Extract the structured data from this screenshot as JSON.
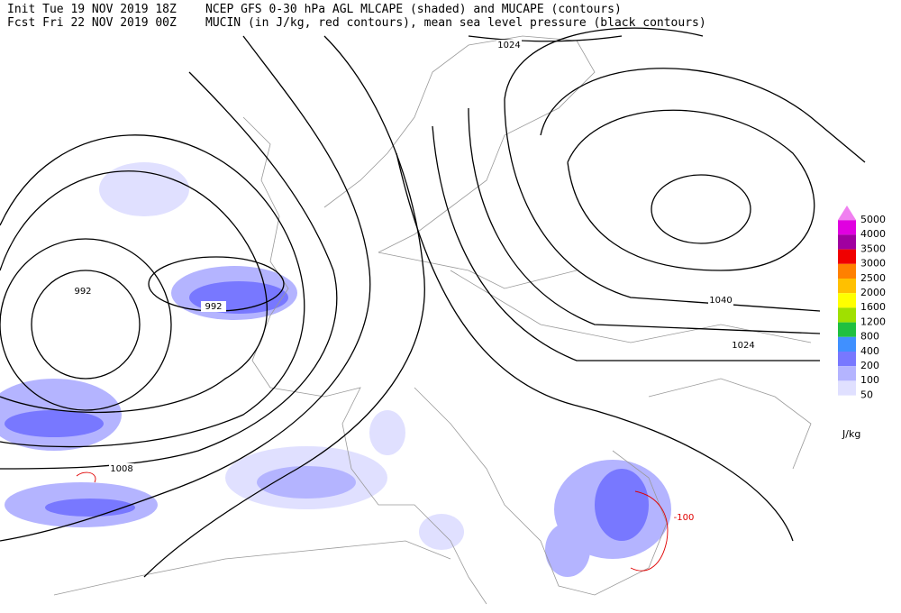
{
  "header": {
    "init": "Init  Tue 19 NOV 2019 18Z",
    "forecast": "Fcst Fri 22 NOV 2019 00Z",
    "description1": "NCEP GFS 0-30 hPa AGL MLCAPE (shaded) and MUCAPE (contours)",
    "description2": "MUCIN (in J/kg, red contours), mean sea level pressure (black contours)"
  },
  "legend": {
    "unit": "J/kg",
    "levels": [
      {
        "value": 5000,
        "color": "#f080f0"
      },
      {
        "value": 4000,
        "color": "#e000e0"
      },
      {
        "value": 3500,
        "color": "#a000a0"
      },
      {
        "value": 3000,
        "color": "#f00000"
      },
      {
        "value": 2500,
        "color": "#ff8000"
      },
      {
        "value": 2000,
        "color": "#ffc000"
      },
      {
        "value": 1600,
        "color": "#ffff00"
      },
      {
        "value": 1200,
        "color": "#a0e000"
      },
      {
        "value": 800,
        "color": "#20c040"
      },
      {
        "value": 400,
        "color": "#4090ff"
      },
      {
        "value": 200,
        "color": "#7878ff"
      },
      {
        "value": 100,
        "color": "#b4b4ff"
      },
      {
        "value": 50,
        "color": "#e0e0ff"
      }
    ]
  },
  "contour_labels": [
    {
      "value": 1024,
      "color": "#000000"
    },
    {
      "value": 992,
      "color": "#000000"
    },
    {
      "value": 992,
      "color": "#000000"
    },
    {
      "value": 1040,
      "color": "#000000"
    },
    {
      "value": 1024,
      "color": "#000000"
    },
    {
      "value": 1008,
      "color": "#000000"
    },
    {
      "value": -100,
      "color": "#e00000"
    }
  ]
}
